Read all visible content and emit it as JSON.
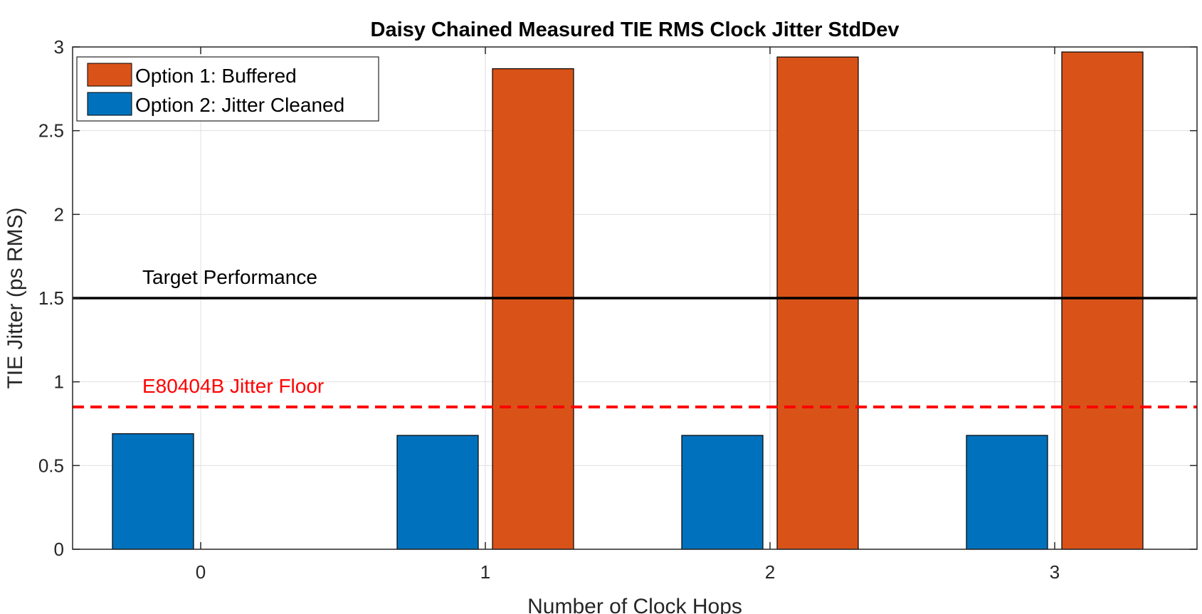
{
  "chart_data": {
    "type": "bar",
    "title": "Daisy Chained Measured TIE RMS Clock Jitter StdDev",
    "xlabel": "Number of Clock Hops",
    "ylabel": "TIE Jitter (ps RMS)",
    "categories": [
      "0",
      "1",
      "2",
      "3"
    ],
    "ylim": [
      0,
      3
    ],
    "yticks": [
      "0",
      "0.5",
      "1",
      "1.5",
      "2",
      "2.5",
      "3"
    ],
    "grid": true,
    "legend_position": "top-left",
    "series": [
      {
        "name": "Option 1: Buffered",
        "color": "#D95319",
        "values": [
          null,
          2.87,
          2.94,
          2.97
        ]
      },
      {
        "name": "Option 2: Jitter Cleaned",
        "color": "#0072BD",
        "values": [
          0.69,
          0.68,
          0.68,
          0.68
        ]
      }
    ],
    "legend_order": [
      0,
      1
    ],
    "plot_order": [
      1,
      0
    ],
    "reference_lines": [
      {
        "label": "Target Performance",
        "value": 1.5,
        "color": "#000000",
        "style": "solid"
      },
      {
        "label": "E80404B Jitter Floor",
        "value": 0.85,
        "color": "#FF0000",
        "style": "dashed"
      }
    ]
  }
}
